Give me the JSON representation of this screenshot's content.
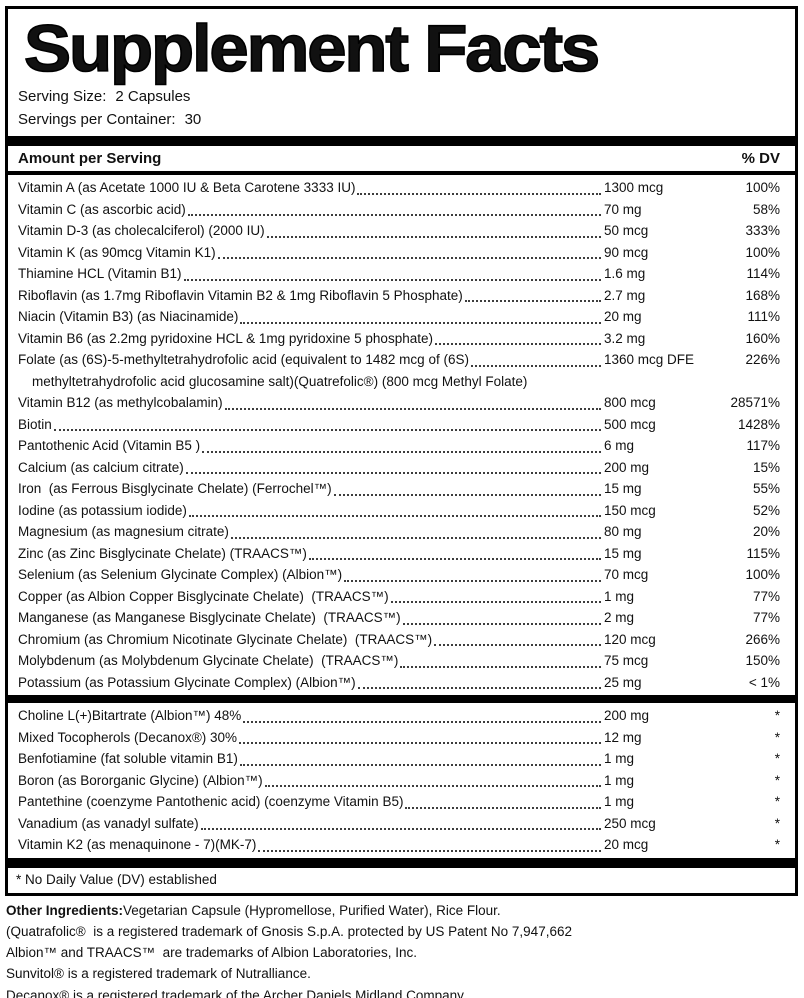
{
  "title": "Supplement Facts",
  "serving": {
    "size_label": "Serving Size:",
    "size_value": "2 Capsules",
    "container_label": "Servings per Container:",
    "container_value": "30"
  },
  "table_header": {
    "left": "Amount per Serving",
    "right": "% DV"
  },
  "section1": [
    {
      "name": "Vitamin A (as Acetate 1000 IU & Beta Carotene 3333 IU)",
      "amount": "1300 mcg",
      "dv": "100%"
    },
    {
      "name": "Vitamin C (as ascorbic acid)",
      "amount": "70 mg",
      "dv": "58%"
    },
    {
      "name": "Vitamin D-3 (as cholecalciferol) (2000 IU)",
      "amount": "50 mcg",
      "dv": "333%"
    },
    {
      "name": "Vitamin K (as 90mcg Vitamin K1)",
      "amount": "90 mcg",
      "dv": "100%"
    },
    {
      "name": "Thiamine HCL (Vitamin B1)",
      "amount": "1.6 mg",
      "dv": "114%"
    },
    {
      "name": "Riboflavin (as 1.7mg Riboflavin Vitamin B2 & 1mg Riboflavin 5 Phosphate)",
      "amount": "2.7 mg",
      "dv": "168%"
    },
    {
      "name": "Niacin (Vitamin B3) (as Niacinamide)",
      "amount": "20 mg",
      "dv": "111%"
    },
    {
      "name": "Vitamin B6 (as 2.2mg pyridoxine HCL & 1mg pyridoxine 5 phosphate)",
      "amount": "3.2 mg",
      "dv": "160%"
    },
    {
      "name": "Folate (as (6S)-5-methyltetrahydrofolic acid (equivalent to 1482 mcg of (6S)",
      "name2": "methyltetrahydrofolic acid glucosamine salt)(Quatrefolic®) (800 mcg Methyl Folate)",
      "amount": "1360 mcg DFE",
      "dv": "226%"
    },
    {
      "name": "Vitamin B12 (as methylcobalamin)",
      "amount": "800 mcg",
      "dv": "28571%"
    },
    {
      "name": "Biotin",
      "amount": "500 mcg",
      "dv": "1428%"
    },
    {
      "name": "Pantothenic Acid (Vitamin B5 )",
      "amount": "6 mg",
      "dv": "117%"
    },
    {
      "name": "Calcium (as calcium citrate)",
      "amount": "200 mg",
      "dv": "15%"
    },
    {
      "name": "Iron  (as Ferrous Bisglycinate Chelate) (Ferrochel™)",
      "amount": "15 mg",
      "dv": "55%"
    },
    {
      "name": "Iodine (as potassium iodide)",
      "amount": "150 mcg",
      "dv": "52%"
    },
    {
      "name": "Magnesium (as magnesium citrate)",
      "amount": "80 mg",
      "dv": "20%"
    },
    {
      "name": "Zinc (as Zinc Bisglycinate Chelate) (TRAACS™)",
      "amount": "15 mg",
      "dv": "115%"
    },
    {
      "name": "Selenium (as Selenium Glycinate Complex) (Albion™)",
      "amount": "70 mcg",
      "dv": "100%"
    },
    {
      "name": "Copper (as Albion Copper Bisglycinate Chelate)  (TRAACS™)",
      "amount": "1 mg",
      "dv": "77%"
    },
    {
      "name": "Manganese (as Manganese Bisglycinate Chelate)  (TRAACS™)",
      "amount": "2 mg",
      "dv": "77%"
    },
    {
      "name": "Chromium (as Chromium Nicotinate Glycinate Chelate)  (TRAACS™)",
      "amount": "120 mcg",
      "dv": "266%"
    },
    {
      "name": "Molybdenum (as Molybdenum Glycinate Chelate)  (TRAACS™)",
      "amount": "75 mcg",
      "dv": "150%"
    },
    {
      "name": "Potassium (as Potassium Glycinate Complex) (Albion™)",
      "amount": "25 mg",
      "dv": "< 1%"
    }
  ],
  "section2": [
    {
      "name": "Choline L(+)Bitartrate (Albion™) 48%",
      "amount": "200 mg",
      "dv": "*"
    },
    {
      "name": "Mixed Tocopherols (Decanox®) 30%",
      "amount": "12 mg",
      "dv": "*"
    },
    {
      "name": "Benfotiamine (fat soluble vitamin B1)",
      "amount": "1 mg",
      "dv": "*"
    },
    {
      "name": "Boron (as Bororganic Glycine) (Albion™)",
      "amount": "1 mg",
      "dv": "*"
    },
    {
      "name": "Pantethine (coenzyme Pantothenic acid) (coenzyme Vitamin B5)",
      "amount": "1 mg",
      "dv": "*"
    },
    {
      "name": "Vanadium (as vanadyl sulfate)",
      "amount": "250 mcg",
      "dv": "*"
    },
    {
      "name": "Vitamin K2 (as menaquinone - 7)(MK-7)",
      "amount": "20 mcg",
      "dv": "*"
    }
  ],
  "footnote": "* No Daily Value (DV) established",
  "footer": [
    {
      "bold": "Other Ingredients:",
      "text": "Vegetarian Capsule (Hypromellose, Purified Water), Rice Flour."
    },
    {
      "text": "(Quatrafolic®  is a registered trademark of Gnosis S.p.A. protected by US Patent No 7,947,662"
    },
    {
      "text": "Albion™ and TRAACS™  are trademarks of Albion Laboratories, Inc."
    },
    {
      "text": "Sunvitol® is a registered trademark of Nutralliance."
    },
    {
      "text": "Decanox® is a registered trademark of the Archer Daniels Midland Company."
    }
  ],
  "colors": {
    "ink": "#000000",
    "background": "#ffffff"
  }
}
